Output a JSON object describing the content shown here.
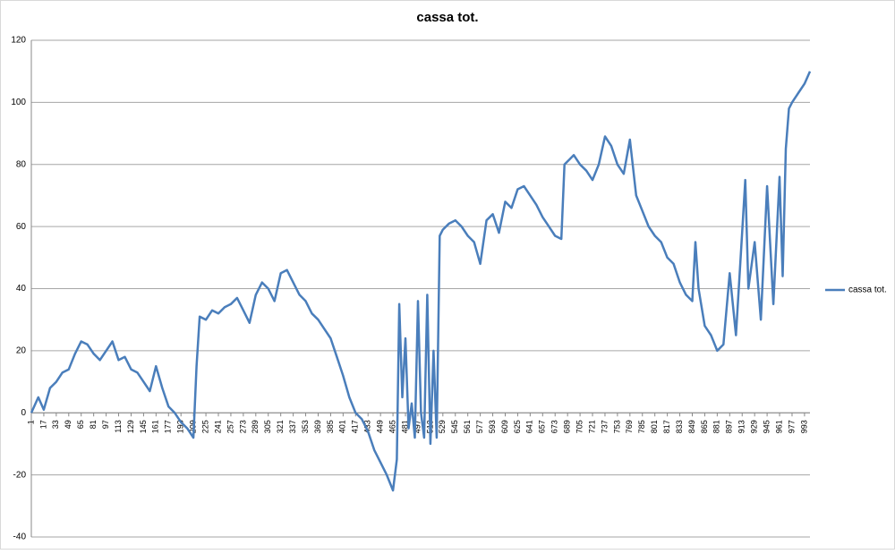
{
  "chart_data": {
    "type": "line",
    "title": "cassa tot.",
    "x": [
      1,
      10,
      17,
      25,
      33,
      41,
      49,
      57,
      65,
      73,
      81,
      89,
      97,
      105,
      113,
      121,
      129,
      137,
      145,
      153,
      161,
      169,
      177,
      185,
      193,
      201,
      209,
      213,
      217,
      225,
      233,
      241,
      249,
      257,
      265,
      273,
      281,
      289,
      297,
      305,
      313,
      321,
      329,
      337,
      345,
      353,
      361,
      369,
      377,
      385,
      393,
      401,
      409,
      417,
      425,
      433,
      441,
      449,
      457,
      465,
      470,
      473,
      477,
      481,
      485,
      489,
      493,
      497,
      501,
      505,
      509,
      513,
      517,
      521,
      525,
      529,
      537,
      545,
      553,
      561,
      569,
      577,
      585,
      593,
      601,
      609,
      617,
      625,
      633,
      641,
      649,
      657,
      665,
      673,
      681,
      685,
      689,
      697,
      705,
      713,
      721,
      729,
      737,
      745,
      753,
      761,
      769,
      777,
      785,
      793,
      801,
      809,
      817,
      825,
      833,
      841,
      849,
      853,
      857,
      865,
      873,
      881,
      889,
      897,
      905,
      913,
      917,
      921,
      929,
      937,
      945,
      953,
      961,
      965,
      969,
      973,
      977,
      985,
      993,
      1000
    ],
    "series": [
      {
        "name": "cassa tot.",
        "color": "#4a7ebb",
        "values": [
          0,
          5,
          1,
          8,
          10,
          13,
          14,
          19,
          23,
          22,
          19,
          17,
          20,
          23,
          17,
          18,
          14,
          13,
          10,
          7,
          15,
          8,
          2,
          0,
          -3,
          -5,
          -8,
          15,
          31,
          30,
          33,
          32,
          34,
          35,
          37,
          33,
          29,
          38,
          42,
          40,
          36,
          45,
          46,
          42,
          38,
          36,
          32,
          30,
          27,
          24,
          18,
          12,
          5,
          0,
          -2,
          -6,
          -12,
          -16,
          -20,
          -25,
          -15,
          35,
          5,
          24,
          -5,
          3,
          -8,
          36,
          0,
          -8,
          38,
          -10,
          20,
          -8,
          57,
          59,
          61,
          62,
          60,
          57,
          55,
          48,
          62,
          64,
          58,
          68,
          66,
          72,
          73,
          70,
          67,
          63,
          60,
          57,
          56,
          80,
          81,
          83,
          80,
          78,
          75,
          80,
          89,
          86,
          80,
          77,
          88,
          70,
          65,
          60,
          57,
          55,
          50,
          48,
          42,
          38,
          36,
          55,
          40,
          28,
          25,
          20,
          22,
          45,
          25,
          58,
          75,
          40,
          55,
          30,
          73,
          35,
          76,
          44,
          85,
          98,
          100,
          103,
          106,
          110
        ]
      }
    ],
    "xlim": [
      1,
      1000
    ],
    "xticks": [
      1,
      17,
      33,
      49,
      65,
      81,
      97,
      113,
      129,
      145,
      161,
      177,
      193,
      209,
      225,
      241,
      257,
      273,
      289,
      305,
      321,
      337,
      353,
      369,
      385,
      401,
      417,
      433,
      449,
      465,
      481,
      497,
      513,
      529,
      545,
      561,
      577,
      593,
      609,
      625,
      641,
      657,
      673,
      689,
      705,
      721,
      737,
      753,
      769,
      785,
      801,
      817,
      833,
      849,
      865,
      881,
      897,
      913,
      929,
      945,
      961,
      977,
      993
    ],
    "ylim": [
      -40,
      120
    ],
    "yticks": [
      -40,
      -20,
      0,
      20,
      40,
      60,
      80,
      100,
      120
    ],
    "grid": true,
    "legend": "right"
  }
}
